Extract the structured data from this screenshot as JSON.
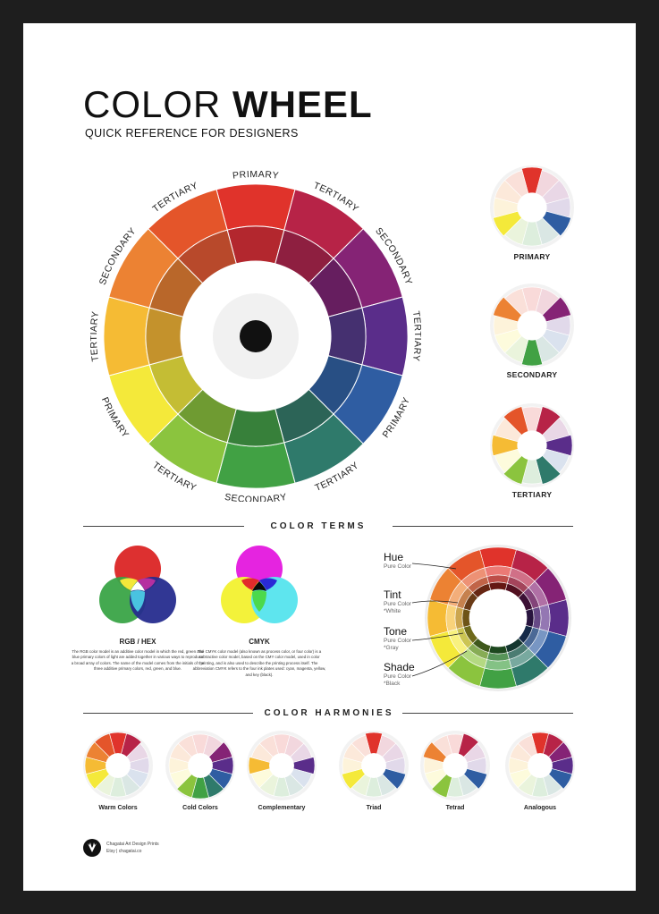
{
  "title": {
    "light": "COLOR ",
    "bold": "WHEEL"
  },
  "subtitle": "QUICK REFERENCE FOR DESIGNERS",
  "wheel_labels": [
    "PRIMARY",
    "TERTIARY",
    "SECONDARY",
    "TERTIARY",
    "PRIMARY",
    "TERTIARY",
    "SECONDARY",
    "TERTIARY",
    "PRIMARY",
    "TERTIARY",
    "SECONDARY",
    "TERTIARY"
  ],
  "wheel_colors": {
    "outer": [
      "#e0332b",
      "#b72347",
      "#852375",
      "#5a2d8a",
      "#2f5da2",
      "#2f7a6b",
      "#41a144",
      "#8bc43e",
      "#f4e93a",
      "#f5bb34",
      "#ec8233",
      "#e4552a"
    ],
    "inner": [
      "#b3272e",
      "#8e1f40",
      "#661e5f",
      "#453070",
      "#284f84",
      "#2c6457",
      "#37803a",
      "#6f9b32",
      "#c4bd34",
      "#c4922c",
      "#b9672a",
      "#b8492b"
    ]
  },
  "mini_wheels": [
    {
      "label": "PRIMARY"
    },
    {
      "label": "SECONDARY"
    },
    {
      "label": "TERTIARY"
    }
  ],
  "color_terms": {
    "title": "COLOR   TERMS",
    "rgb": {
      "label": "RGB / HEX",
      "desc": "The RGB color model is an additive color model in which the red, green and blue primary colors of light are added together in various ways to reproduce a broad array of colors. The name of the model comes from the initials of the three additive primary colors, red, green, and blue."
    },
    "cmyk": {
      "label": "CMYK",
      "desc": "The CMYK color model (also known as process color, or four color) is a subtractive color model, based on the CMY color model, used in color printing, and is also used to describe the printing process itself. The abbreviation CMYK refers to the four ink plates used: cyan, magenta, yellow, and key (black)."
    },
    "terms": [
      {
        "name": "Hue",
        "sub": [
          "Pure Color"
        ]
      },
      {
        "name": "Tint",
        "sub": [
          "Pure Color",
          "*White"
        ]
      },
      {
        "name": "Tone",
        "sub": [
          "Pure Color",
          "*Gray"
        ]
      },
      {
        "name": "Shade",
        "sub": [
          "Pure Color",
          "*Black"
        ]
      }
    ]
  },
  "harmonies": {
    "title": "COLOR HARMONIES",
    "items": [
      {
        "label": "Warm Colors"
      },
      {
        "label": "Cold Colors"
      },
      {
        "label": "Complementary"
      },
      {
        "label": "Triad"
      },
      {
        "label": "Tetrad"
      },
      {
        "label": "Analogous"
      }
    ]
  },
  "footer": {
    "line1": "Chagatai Art Design Prints",
    "line2": "Etsy  |  chagatai.co"
  }
}
